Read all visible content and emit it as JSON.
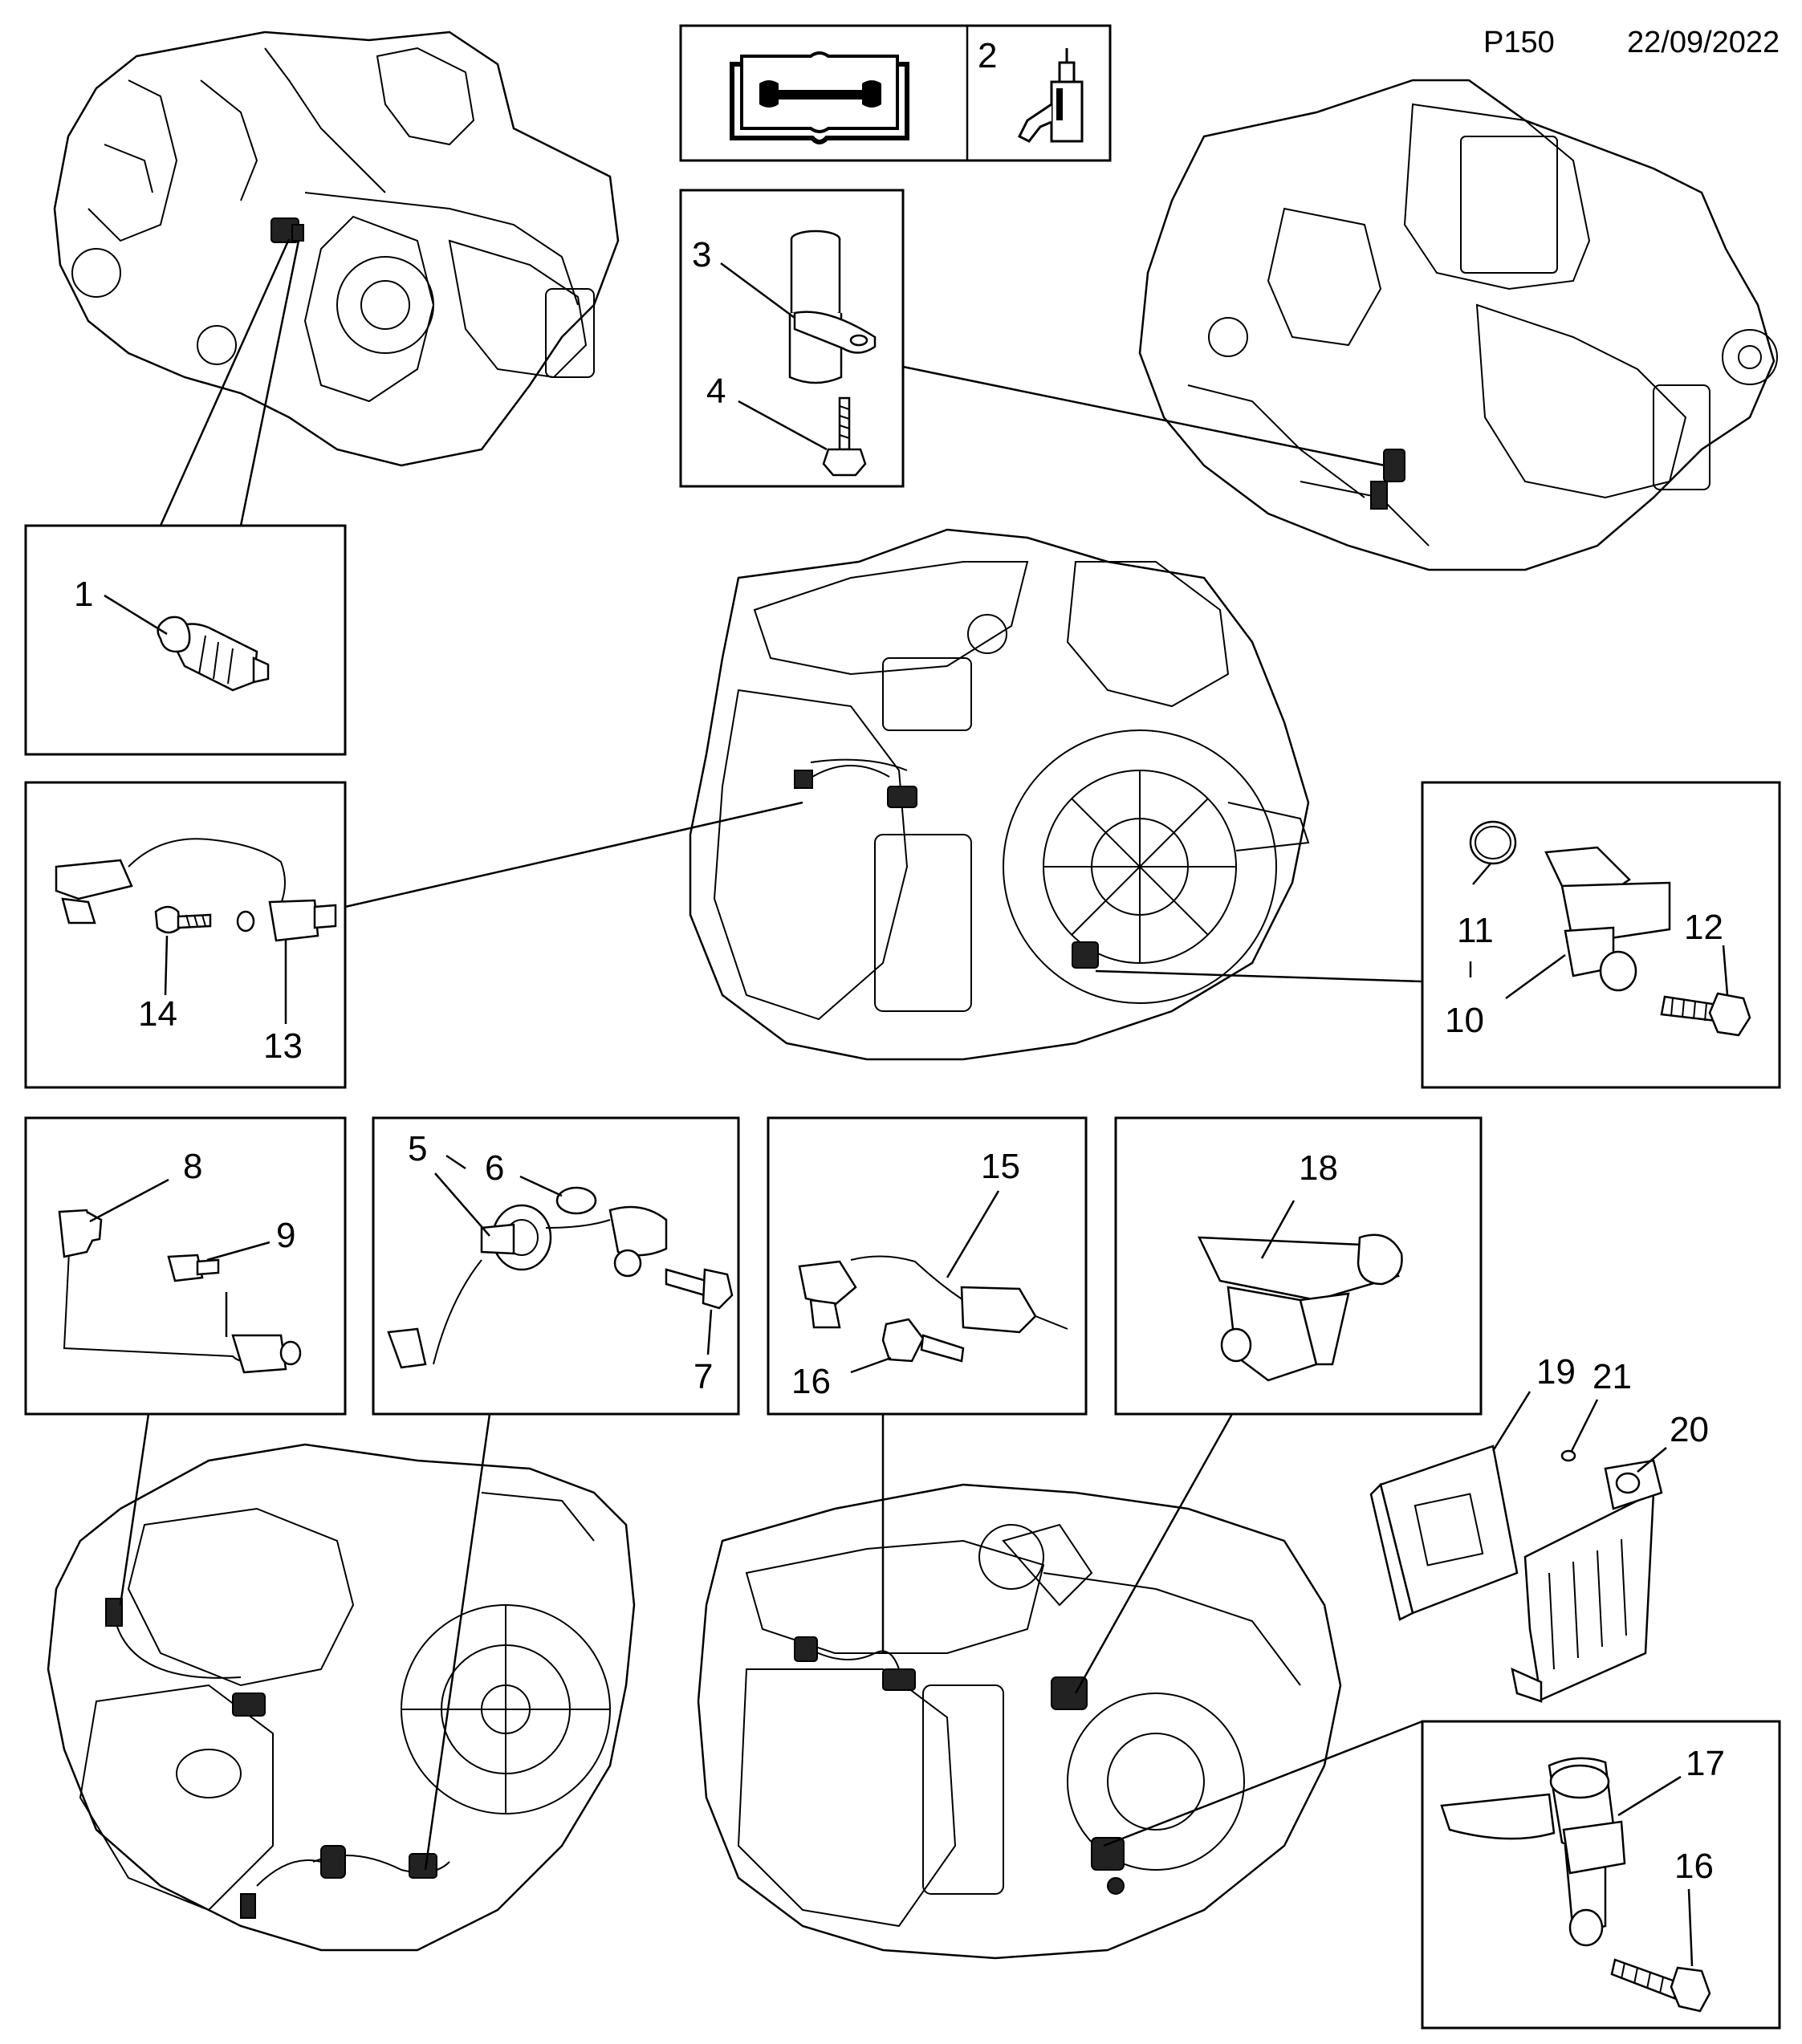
{
  "header": {
    "page_code": "P150",
    "date": "22/09/2022"
  },
  "notes": {
    "service_box_number": "2"
  },
  "callouts": {
    "c1": "1",
    "c3": "3",
    "c4": "4",
    "c5": "5",
    "c6": "6",
    "c7": "7",
    "c8": "8",
    "c9": "9",
    "c10": "10",
    "c11": "11",
    "c12": "12",
    "c13": "13",
    "c14": "14",
    "c15": "15",
    "c16a": "16",
    "c16b": "16",
    "c17": "17",
    "c18": "18",
    "c19": "19",
    "c20": "20",
    "c21": "21"
  },
  "icons": {
    "manual": "service-manual-book-icon",
    "oil": "oil-bottle-icon"
  }
}
